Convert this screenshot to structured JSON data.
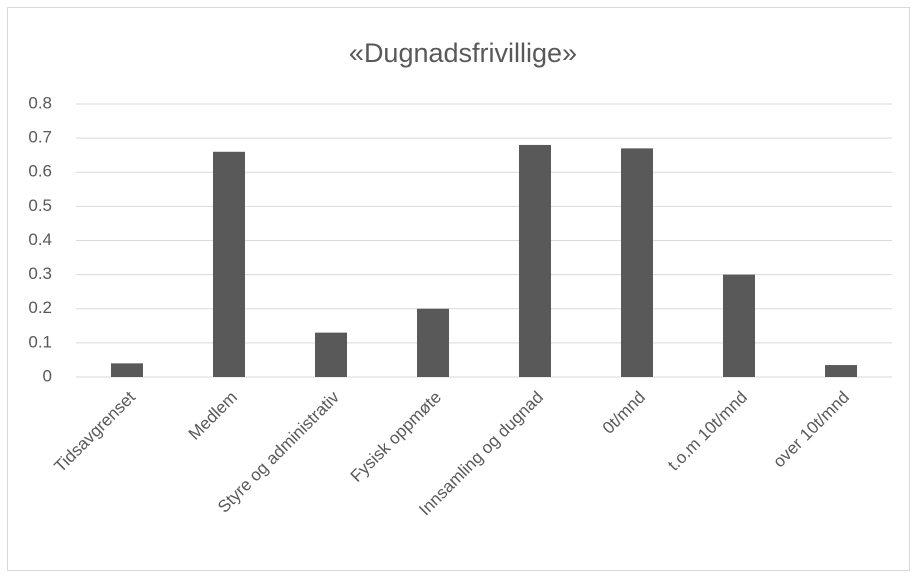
{
  "chart_data": {
    "type": "bar",
    "title": "«Dugnadsfrivillige»",
    "categories": [
      "Tidsavgrenset",
      "Medlem",
      "Styre og administrativ",
      "Fysisk oppmøte",
      "Innsamling og dugnad",
      "0t/mnd",
      "t.o.m 10t/mnd",
      "over 10t/mnd"
    ],
    "values": [
      0.04,
      0.66,
      0.13,
      0.2,
      0.68,
      0.67,
      0.3,
      0.035
    ],
    "color": "#595959",
    "ylim": [
      0,
      0.8
    ],
    "yticks": [
      0,
      0.1,
      0.2,
      0.3,
      0.4,
      0.5,
      0.6,
      0.7,
      0.8
    ],
    "grid": true
  }
}
